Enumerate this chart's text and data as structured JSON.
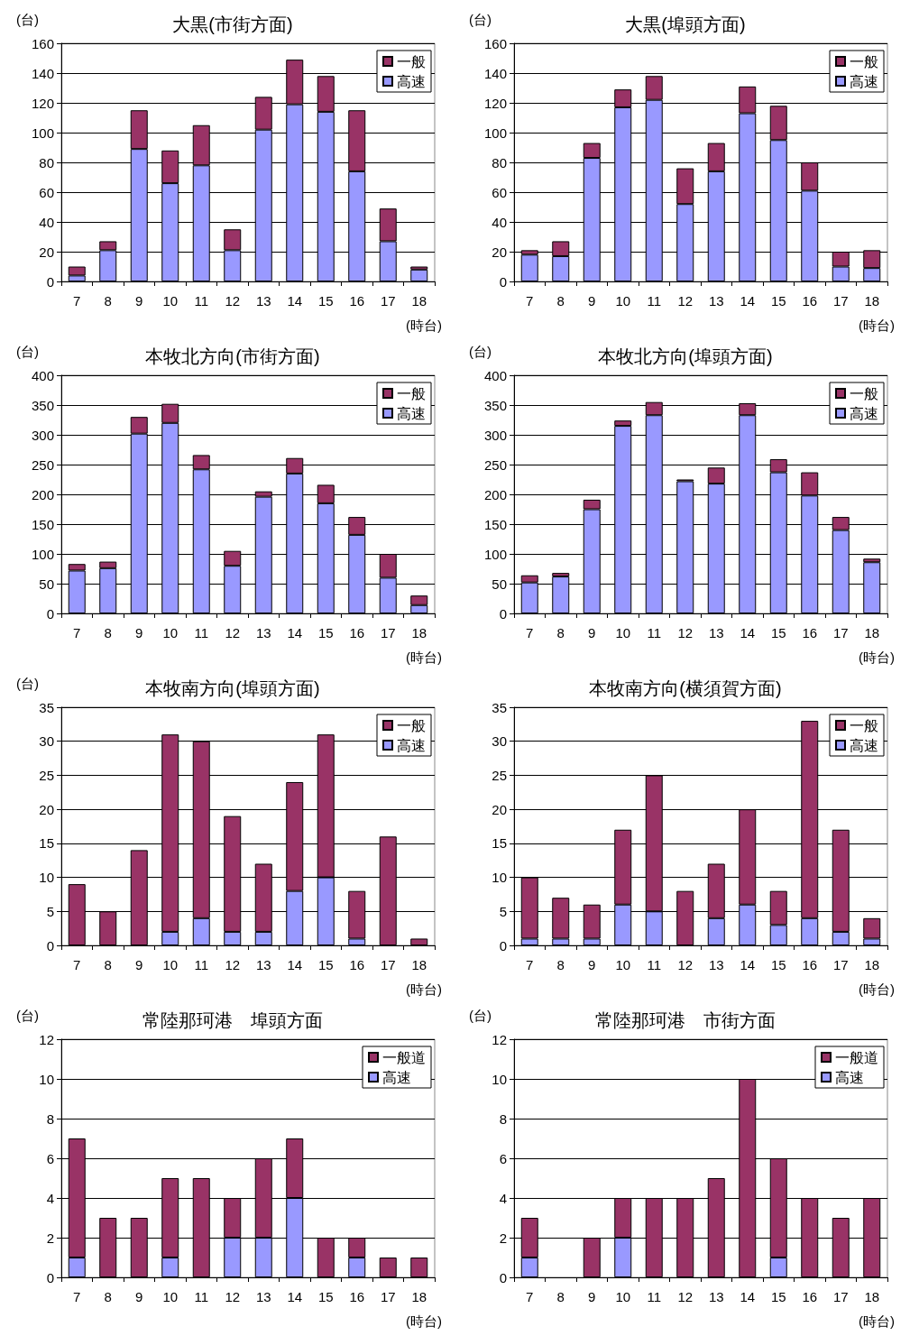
{
  "chart_data": [
    {
      "type": "bar",
      "title": "大黒(市街方面)",
      "ylabel": "(台)",
      "xlabel": "(時台)",
      "stacked": true,
      "grid": "y",
      "legend": "top right",
      "categories": [
        "7",
        "8",
        "9",
        "10",
        "11",
        "12",
        "13",
        "14",
        "15",
        "16",
        "17",
        "18"
      ],
      "ylim": [
        0,
        160
      ],
      "yticks": [
        0,
        20,
        40,
        60,
        80,
        100,
        120,
        140,
        160
      ],
      "series": [
        {
          "name": "高速",
          "color": "#9999ff",
          "values": [
            4,
            21,
            89,
            66,
            78,
            21,
            102,
            119,
            114,
            74,
            27,
            8
          ]
        },
        {
          "name": "一般",
          "color": "#993366",
          "values": [
            6,
            6,
            26,
            22,
            27,
            14,
            22,
            30,
            24,
            41,
            22,
            2
          ]
        }
      ]
    },
    {
      "type": "bar",
      "title": "大黒(埠頭方面)",
      "ylabel": "(台)",
      "xlabel": "(時台)",
      "stacked": true,
      "grid": "y",
      "legend": "top right",
      "categories": [
        "7",
        "8",
        "9",
        "10",
        "11",
        "12",
        "13",
        "14",
        "15",
        "16",
        "17",
        "18"
      ],
      "ylim": [
        0,
        160
      ],
      "yticks": [
        0,
        20,
        40,
        60,
        80,
        100,
        120,
        140,
        160
      ],
      "series": [
        {
          "name": "高速",
          "color": "#9999ff",
          "values": [
            18,
            17,
            83,
            117,
            122,
            52,
            74,
            113,
            95,
            61,
            10,
            9
          ]
        },
        {
          "name": "一般",
          "color": "#993366",
          "values": [
            3,
            10,
            10,
            12,
            16,
            24,
            19,
            18,
            23,
            19,
            10,
            12
          ]
        }
      ]
    },
    {
      "type": "bar",
      "title": "本牧北方向(市街方面)",
      "ylabel": "(台)",
      "xlabel": "(時台)",
      "stacked": true,
      "grid": "y",
      "legend": "top right",
      "categories": [
        "7",
        "8",
        "9",
        "10",
        "11",
        "12",
        "13",
        "14",
        "15",
        "16",
        "17",
        "18"
      ],
      "ylim": [
        0,
        400
      ],
      "yticks": [
        0,
        50,
        100,
        150,
        200,
        250,
        300,
        350,
        400
      ],
      "series": [
        {
          "name": "高速",
          "color": "#9999ff",
          "values": [
            72,
            76,
            302,
            320,
            242,
            80,
            196,
            235,
            185,
            132,
            60,
            14
          ]
        },
        {
          "name": "一般",
          "color": "#993366",
          "values": [
            11,
            11,
            28,
            32,
            24,
            25,
            9,
            26,
            31,
            30,
            40,
            16
          ]
        }
      ]
    },
    {
      "type": "bar",
      "title": "本牧北方向(埠頭方面)",
      "ylabel": "(台)",
      "xlabel": "(時台)",
      "stacked": true,
      "grid": "y",
      "legend": "top right",
      "categories": [
        "7",
        "8",
        "9",
        "10",
        "11",
        "12",
        "13",
        "14",
        "15",
        "16",
        "17",
        "18"
      ],
      "ylim": [
        0,
        400
      ],
      "yticks": [
        0,
        50,
        100,
        150,
        200,
        250,
        300,
        350,
        400
      ],
      "series": [
        {
          "name": "高速",
          "color": "#9999ff",
          "values": [
            52,
            62,
            175,
            315,
            333,
            222,
            218,
            333,
            237,
            198,
            140,
            86
          ]
        },
        {
          "name": "一般",
          "color": "#993366",
          "values": [
            12,
            6,
            16,
            9,
            22,
            3,
            27,
            20,
            22,
            39,
            22,
            6
          ]
        }
      ]
    },
    {
      "type": "bar",
      "title": "本牧南方向(埠頭方面)",
      "ylabel": "(台)",
      "xlabel": "(時台)",
      "stacked": true,
      "grid": "y",
      "legend": "top right",
      "categories": [
        "7",
        "8",
        "9",
        "10",
        "11",
        "12",
        "13",
        "14",
        "15",
        "16",
        "17",
        "18"
      ],
      "ylim": [
        0,
        35
      ],
      "yticks": [
        0,
        5,
        10,
        15,
        20,
        25,
        30,
        35
      ],
      "series": [
        {
          "name": "高速",
          "color": "#9999ff",
          "values": [
            0,
            0,
            0,
            2,
            4,
            2,
            2,
            8,
            10,
            1,
            0,
            0
          ]
        },
        {
          "name": "一般",
          "color": "#993366",
          "values": [
            9,
            5,
            14,
            29,
            26,
            17,
            10,
            16,
            21,
            7,
            16,
            1
          ]
        }
      ]
    },
    {
      "type": "bar",
      "title": "本牧南方向(横須賀方面)",
      "xlabel": "(時台)",
      "stacked": true,
      "grid": "y",
      "legend": "top right",
      "categories": [
        "7",
        "8",
        "9",
        "10",
        "11",
        "12",
        "13",
        "14",
        "15",
        "16",
        "17",
        "18"
      ],
      "ylim": [
        0,
        35
      ],
      "yticks": [
        0,
        5,
        10,
        15,
        20,
        25,
        30,
        35
      ],
      "series": [
        {
          "name": "高速",
          "color": "#9999ff",
          "values": [
            1,
            1,
            1,
            6,
            5,
            0,
            4,
            6,
            3,
            4,
            2,
            1
          ]
        },
        {
          "name": "一般",
          "color": "#993366",
          "values": [
            9,
            6,
            5,
            11,
            20,
            8,
            8,
            14,
            5,
            29,
            15,
            3
          ]
        }
      ]
    },
    {
      "type": "bar",
      "title": "常陸那珂港　埠頭方面",
      "ylabel": "(台)",
      "xlabel": "(時台)",
      "stacked": true,
      "grid": "y",
      "legend": "top right",
      "categories": [
        "7",
        "8",
        "9",
        "10",
        "11",
        "12",
        "13",
        "14",
        "15",
        "16",
        "17",
        "18"
      ],
      "ylim": [
        0,
        12
      ],
      "yticks": [
        0,
        2,
        4,
        6,
        8,
        10,
        12
      ],
      "series": [
        {
          "name": "高速",
          "color": "#9999ff",
          "values": [
            1,
            0,
            0,
            1,
            0,
            2,
            2,
            4,
            0,
            1,
            0,
            0
          ]
        },
        {
          "name": "一般道",
          "color": "#993366",
          "values": [
            6,
            3,
            3,
            4,
            5,
            2,
            4,
            3,
            2,
            1,
            1,
            1
          ]
        }
      ]
    },
    {
      "type": "bar",
      "title": "常陸那珂港　市街方面",
      "ylabel": "(台)",
      "xlabel": "(時台)",
      "stacked": true,
      "grid": "y",
      "legend": "top right",
      "categories": [
        "7",
        "8",
        "9",
        "10",
        "11",
        "12",
        "13",
        "14",
        "15",
        "16",
        "17",
        "18"
      ],
      "ylim": [
        0,
        12
      ],
      "yticks": [
        0,
        2,
        4,
        6,
        8,
        10,
        12
      ],
      "series": [
        {
          "name": "高速",
          "color": "#9999ff",
          "values": [
            1,
            0,
            0,
            2,
            0,
            0,
            0,
            0,
            1,
            0,
            0,
            0
          ]
        },
        {
          "name": "一般道",
          "color": "#993366",
          "values": [
            2,
            0,
            2,
            2,
            4,
            4,
            5,
            10,
            5,
            4,
            3,
            4
          ]
        }
      ]
    }
  ]
}
